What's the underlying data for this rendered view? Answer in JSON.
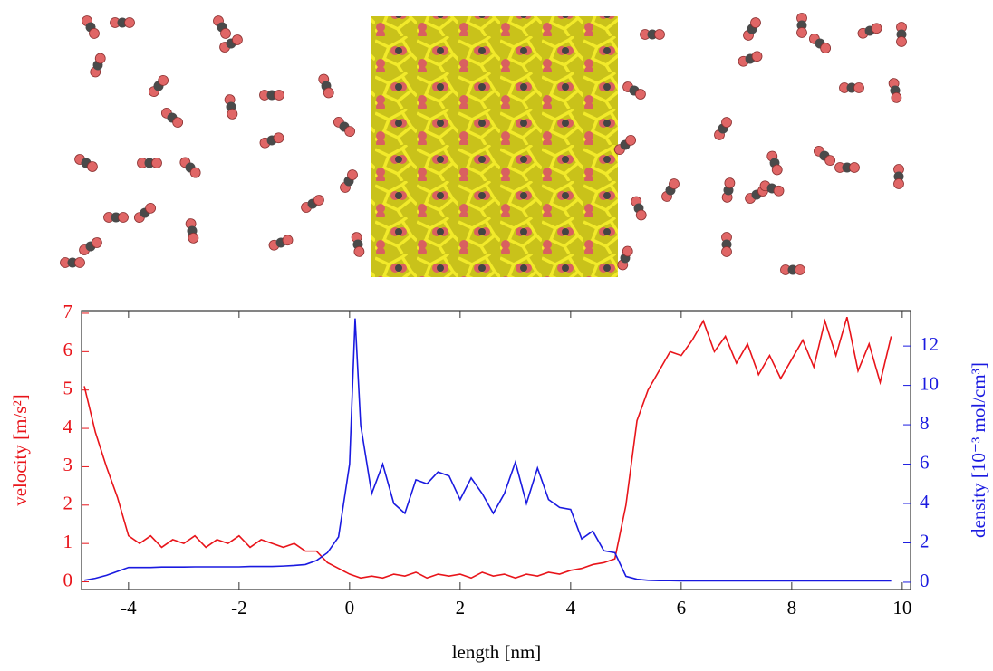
{
  "chart_data": {
    "type": "line",
    "xlabel": "length [nm]",
    "ylabel": "velocity [m/s²]",
    "y2label": "density [10⁻³ mol/cm³]",
    "x": [
      -4.8,
      -4.6,
      -4.4,
      -4.2,
      -4.0,
      -3.8,
      -3.6,
      -3.4,
      -3.2,
      -3.0,
      -2.8,
      -2.6,
      -2.4,
      -2.2,
      -2.0,
      -1.8,
      -1.6,
      -1.4,
      -1.2,
      -1.0,
      -0.8,
      -0.6,
      -0.4,
      -0.2,
      0,
      0.1,
      0.2,
      0.4,
      0.6,
      0.8,
      1.0,
      1.2,
      1.4,
      1.6,
      1.8,
      2.0,
      2.2,
      2.4,
      2.6,
      2.8,
      3.0,
      3.2,
      3.4,
      3.6,
      3.8,
      4.0,
      4.2,
      4.4,
      4.6,
      4.8,
      5.0,
      5.2,
      5.4,
      5.6,
      5.8,
      6.0,
      6.2,
      6.4,
      6.6,
      6.8,
      7.0,
      7.2,
      7.4,
      7.6,
      7.8,
      8.0,
      8.2,
      8.4,
      8.6,
      8.8,
      9.0,
      9.2,
      9.4,
      9.6,
      9.8
    ],
    "series": [
      {
        "color": "#e8141a",
        "axis": "y",
        "values": [
          5.1,
          3.9,
          3.0,
          2.2,
          1.2,
          1.0,
          1.2,
          0.9,
          1.1,
          1.0,
          1.2,
          0.9,
          1.1,
          1.0,
          1.2,
          0.9,
          1.1,
          1.0,
          0.9,
          1.0,
          0.8,
          0.8,
          0.5,
          0.35,
          0.2,
          0.15,
          0.1,
          0.15,
          0.1,
          0.2,
          0.15,
          0.25,
          0.1,
          0.2,
          0.15,
          0.2,
          0.1,
          0.25,
          0.15,
          0.2,
          0.1,
          0.2,
          0.15,
          0.25,
          0.2,
          0.3,
          0.35,
          0.45,
          0.5,
          0.6,
          2.0,
          4.2,
          5.0,
          5.5,
          6.0,
          5.9,
          6.3,
          6.8,
          6.0,
          6.4,
          5.7,
          6.2,
          5.4,
          5.9,
          5.3,
          5.8,
          6.3,
          5.6,
          6.8,
          5.9,
          6.9,
          5.5,
          6.2,
          5.2,
          6.4
        ]
      },
      {
        "color": "#1a1ae0",
        "axis": "y2",
        "values": [
          0.1,
          0.2,
          0.35,
          0.55,
          0.75,
          0.75,
          0.75,
          0.77,
          0.77,
          0.77,
          0.78,
          0.78,
          0.78,
          0.78,
          0.78,
          0.8,
          0.8,
          0.8,
          0.82,
          0.85,
          0.9,
          1.1,
          1.5,
          2.3,
          6.0,
          13.4,
          8.0,
          4.5,
          6.0,
          4.0,
          3.5,
          5.2,
          5.0,
          5.6,
          5.4,
          4.2,
          5.3,
          4.5,
          3.5,
          4.5,
          6.1,
          4.0,
          5.8,
          4.2,
          3.8,
          3.7,
          2.2,
          2.6,
          1.6,
          1.5,
          0.3,
          0.15,
          0.1,
          0.08,
          0.08,
          0.07,
          0.07,
          0.07,
          0.07,
          0.07,
          0.07,
          0.07,
          0.07,
          0.07,
          0.07,
          0.07,
          0.07,
          0.07,
          0.07,
          0.07,
          0.07,
          0.07,
          0.07,
          0.07,
          0.07
        ]
      }
    ],
    "xlim": [
      -4.85,
      10.15
    ],
    "xticks": [
      -4,
      -2,
      0,
      2,
      4,
      6,
      8,
      10
    ],
    "ylim": [
      -0.2,
      7.07
    ],
    "yticks": [
      0,
      1,
      2,
      3,
      4,
      5,
      6,
      7
    ],
    "y2lim": [
      -0.37,
      13.8
    ],
    "y2ticks": [
      0,
      2,
      4,
      6,
      8,
      10,
      12
    ]
  }
}
